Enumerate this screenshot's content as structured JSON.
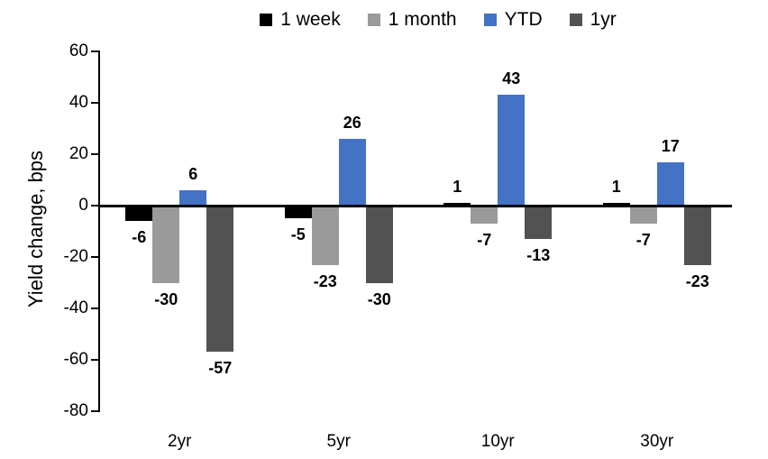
{
  "chart_data": {
    "type": "bar",
    "title": "",
    "ylabel": "Yield change, bps",
    "xlabel": "",
    "categories": [
      "2yr",
      "5yr",
      "10yr",
      "30yr"
    ],
    "series": [
      {
        "name": "1 week",
        "color": "#000000",
        "values": [
          -6,
          -5,
          1,
          1
        ]
      },
      {
        "name": "1 month",
        "color": "#9A9A9A",
        "values": [
          -30,
          -23,
          -7,
          -7
        ]
      },
      {
        "name": "YTD",
        "color": "#4472C4",
        "values": [
          6,
          26,
          43,
          17
        ]
      },
      {
        "name": "1yr",
        "color": "#525252",
        "values": [
          -57,
          -30,
          -13,
          -23
        ]
      }
    ],
    "ylim": [
      -80,
      60
    ],
    "ytick_step": 20,
    "ytick_labels": [
      "60",
      "40",
      "20",
      "0",
      "-20",
      "-40",
      "-60",
      "-80"
    ],
    "grid": false,
    "legend_position": "top",
    "data_labels": true,
    "background": "#ffffff"
  }
}
